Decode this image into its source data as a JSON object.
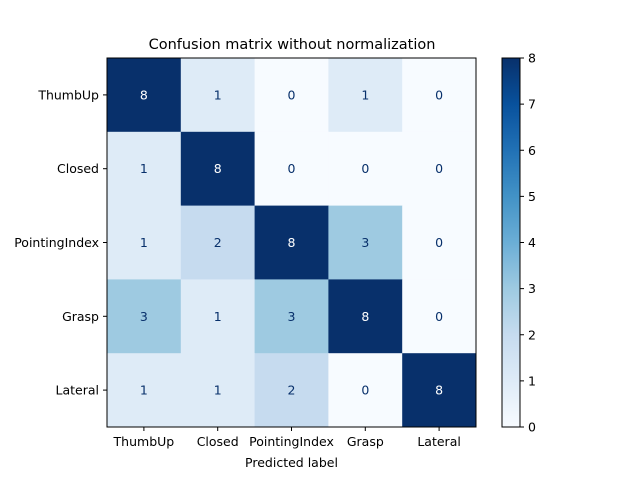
{
  "chart_data": {
    "type": "heatmap",
    "title": "Confusion matrix without normalization",
    "xlabel": "Predicted label",
    "ylabel": "",
    "x_categories": [
      "ThumbUp",
      "Closed",
      "PointingIndex",
      "Grasp",
      "Lateral"
    ],
    "y_categories": [
      "ThumbUp",
      "Closed",
      "PointingIndex",
      "Grasp",
      "Lateral"
    ],
    "values": [
      [
        8,
        1,
        0,
        1,
        0
      ],
      [
        1,
        8,
        0,
        0,
        0
      ],
      [
        1,
        2,
        8,
        3,
        0
      ],
      [
        3,
        1,
        3,
        8,
        0
      ],
      [
        1,
        1,
        2,
        0,
        8
      ]
    ],
    "colormap": "Blues",
    "color_range": [
      0,
      8
    ],
    "colorbar_ticks": [
      0,
      1,
      2,
      3,
      4,
      5,
      6,
      7,
      8
    ],
    "grid": false,
    "text_color_light": "#ffffff",
    "text_color_dark": "#08306b"
  }
}
